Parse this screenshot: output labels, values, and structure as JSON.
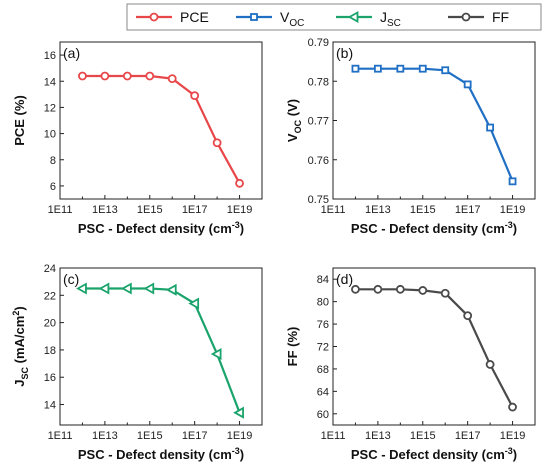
{
  "legend": [
    {
      "name": "PCE",
      "sub": "",
      "color": "#e8474a",
      "marker": "circle"
    },
    {
      "name": "V",
      "sub": "OC",
      "color": "#1f6fc4",
      "marker": "square"
    },
    {
      "name": "J",
      "sub": "SC",
      "color": "#1aa36b",
      "marker": "triangle-left"
    },
    {
      "name": "FF",
      "sub": "",
      "color": "#4a4a4a",
      "marker": "circle"
    }
  ],
  "chart_data": [
    {
      "type": "line",
      "panel_label": "(a)",
      "ylabel": "PCE (%)",
      "ylabel_main": "PCE (%)",
      "ylabel_sub": "",
      "ylabel_rest": "",
      "xlabel": "PSC - Defect density (cm",
      "xlabel_sup": "-3",
      "xlabel_close": ")",
      "x_scale": "log",
      "xlim": [
        100000000000.0,
        1e+20
      ],
      "x_ticks": [
        100000000000.0,
        10000000000000.0,
        1000000000000000.0,
        1e+17,
        1e+19
      ],
      "x_tick_labels": [
        "1E11",
        "1E13",
        "1E15",
        "1E17",
        "1E19"
      ],
      "ylim": [
        5,
        17
      ],
      "y_ticks": [
        6,
        8,
        10,
        12,
        14,
        16
      ],
      "y_tick_labels": [
        "6",
        "8",
        "10",
        "12",
        "14",
        "16"
      ],
      "color": "#e8474a",
      "marker": "circle",
      "series": [
        {
          "name": "PCE",
          "x": [
            1000000000000.0,
            10000000000000.0,
            100000000000000.0,
            1000000000000000.0,
            1e+16,
            1e+17,
            1e+18,
            1e+19
          ],
          "y": [
            14.4,
            14.4,
            14.4,
            14.4,
            14.2,
            12.9,
            9.3,
            6.2
          ]
        }
      ]
    },
    {
      "type": "line",
      "panel_label": "(b)",
      "ylabel": "VOC (V)",
      "ylabel_main": "V",
      "ylabel_sub": "OC",
      "ylabel_rest": " (V)",
      "xlabel": "PSC - Defect density (cm",
      "xlabel_sup": "-3",
      "xlabel_close": ")",
      "x_scale": "log",
      "xlim": [
        100000000000.0,
        1e+20
      ],
      "x_ticks": [
        100000000000.0,
        10000000000000.0,
        1000000000000000.0,
        1e+17,
        1e+19
      ],
      "x_tick_labels": [
        "1E11",
        "1E13",
        "1E15",
        "1E17",
        "1E19"
      ],
      "ylim": [
        0.75,
        0.79
      ],
      "y_ticks": [
        0.75,
        0.76,
        0.77,
        0.78,
        0.79
      ],
      "y_tick_labels": [
        "0.75",
        "0.76",
        "0.77",
        "0.78",
        "0.79"
      ],
      "color": "#1f6fc4",
      "marker": "square",
      "series": [
        {
          "name": "VOC",
          "x": [
            1000000000000.0,
            10000000000000.0,
            100000000000000.0,
            1000000000000000.0,
            1e+16,
            1e+17,
            1e+18,
            1e+19
          ],
          "y": [
            0.7832,
            0.7832,
            0.7832,
            0.7832,
            0.7828,
            0.7792,
            0.7682,
            0.7545
          ]
        }
      ]
    },
    {
      "type": "line",
      "panel_label": "(c)",
      "ylabel": "JSC (mA/cm2)",
      "ylabel_main": "J",
      "ylabel_sub": "SC",
      "ylabel_rest": " (mA/cm",
      "ylabel_sup": "2",
      "ylabel_close": ")",
      "xlabel": "PSC - Defect density (cm",
      "xlabel_sup": "-3",
      "xlabel_close": ")",
      "x_scale": "log",
      "xlim": [
        100000000000.0,
        1e+20
      ],
      "x_ticks": [
        100000000000.0,
        10000000000000.0,
        1000000000000000.0,
        1e+17,
        1e+19
      ],
      "x_tick_labels": [
        "1E11",
        "1E13",
        "1E15",
        "1E17",
        "1E19"
      ],
      "ylim": [
        12.5,
        24
      ],
      "y_ticks": [
        14,
        16,
        18,
        20,
        22,
        24
      ],
      "y_tick_labels": [
        "14",
        "16",
        "18",
        "20",
        "22",
        "24"
      ],
      "color": "#1aa36b",
      "marker": "triangle-left",
      "series": [
        {
          "name": "JSC",
          "x": [
            1000000000000.0,
            10000000000000.0,
            100000000000000.0,
            1000000000000000.0,
            1e+16,
            1e+17,
            1e+18,
            1e+19
          ],
          "y": [
            22.5,
            22.5,
            22.5,
            22.5,
            22.4,
            21.4,
            17.7,
            13.4
          ]
        }
      ]
    },
    {
      "type": "line",
      "panel_label": "(d)",
      "ylabel": "FF (%)",
      "ylabel_main": "FF (%)",
      "ylabel_sub": "",
      "ylabel_rest": "",
      "xlabel": "PSC - Defect density (cm",
      "xlabel_sup": "-3",
      "xlabel_close": ")",
      "x_scale": "log",
      "xlim": [
        100000000000.0,
        1e+20
      ],
      "x_ticks": [
        100000000000.0,
        10000000000000.0,
        1000000000000000.0,
        1e+17,
        1e+19
      ],
      "x_tick_labels": [
        "1E11",
        "1E13",
        "1E15",
        "1E17",
        "1E19"
      ],
      "ylim": [
        58,
        86
      ],
      "y_ticks": [
        60,
        64,
        68,
        72,
        76,
        80,
        84
      ],
      "y_tick_labels": [
        "60",
        "64",
        "68",
        "72",
        "76",
        "80",
        "84"
      ],
      "color": "#4a4a4a",
      "marker": "circle",
      "series": [
        {
          "name": "FF",
          "x": [
            1000000000000.0,
            10000000000000.0,
            100000000000000.0,
            1000000000000000.0,
            1e+16,
            1e+17,
            1e+18,
            1e+19
          ],
          "y": [
            82.2,
            82.2,
            82.2,
            82.0,
            81.5,
            77.5,
            68.8,
            61.2
          ]
        }
      ]
    }
  ]
}
